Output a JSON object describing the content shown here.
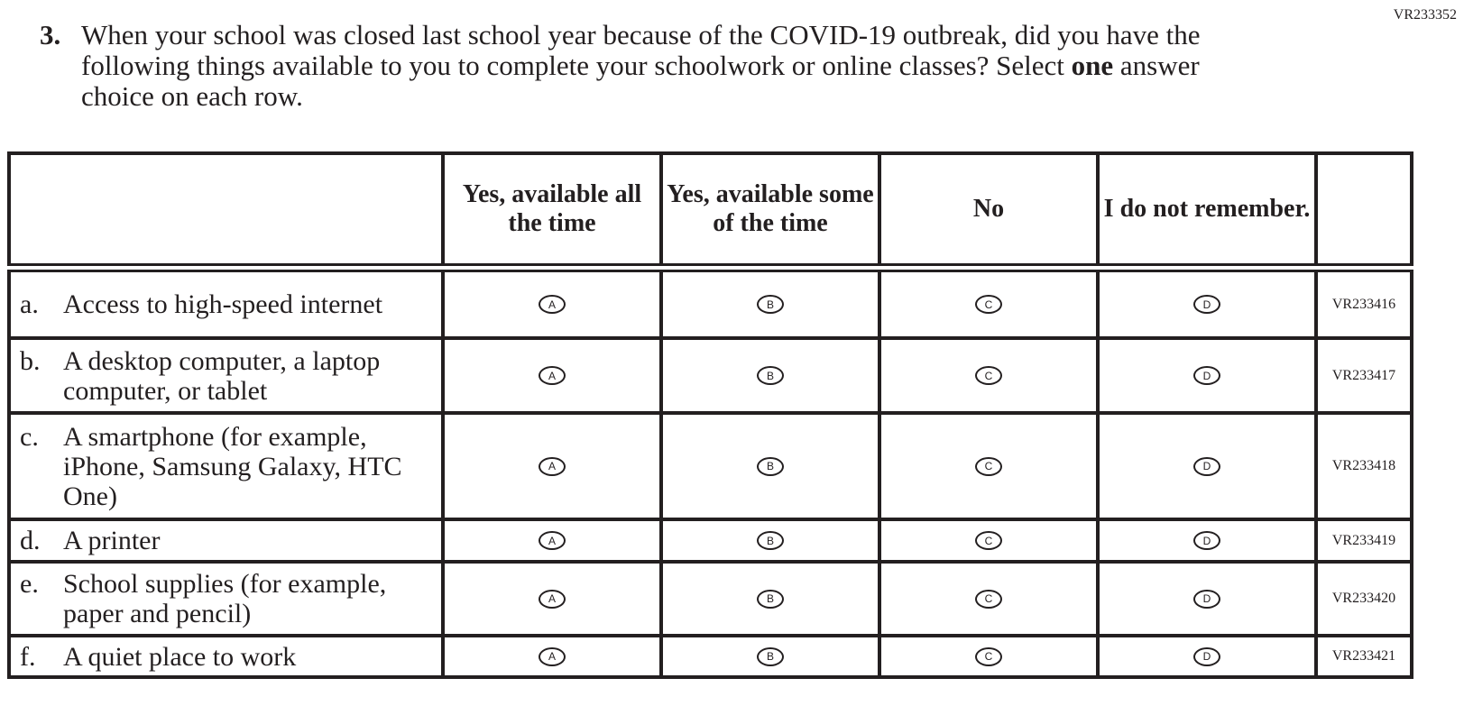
{
  "item_id": "VR233352",
  "question": {
    "number": "3.",
    "text_before": "When your school was closed last school year because of the COVID-19 outbreak, did you have the following things available to you to complete your schoolwork or online classes? Select ",
    "text_bold": "one",
    "text_after": " answer choice on each row."
  },
  "columns": [
    "Yes, available all the time",
    "Yes, available some of the time",
    "No",
    "I do not remember."
  ],
  "options": [
    "A",
    "B",
    "C",
    "D"
  ],
  "rows": [
    {
      "letter": "a.",
      "label": "Access to high-speed internet",
      "id": "VR233416"
    },
    {
      "letter": "b.",
      "label": "A desktop computer, a laptop computer, or tablet",
      "id": "VR233417"
    },
    {
      "letter": "c.",
      "label": "A smartphone (for example, iPhone, Samsung Galaxy, HTC One)",
      "id": "VR233418"
    },
    {
      "letter": "d.",
      "label": "A printer",
      "id": "VR233419"
    },
    {
      "letter": "e.",
      "label": "School supplies (for example, paper and pencil)",
      "id": "VR233420"
    },
    {
      "letter": "f.",
      "label": "A quiet place to work",
      "id": "VR233421"
    }
  ]
}
